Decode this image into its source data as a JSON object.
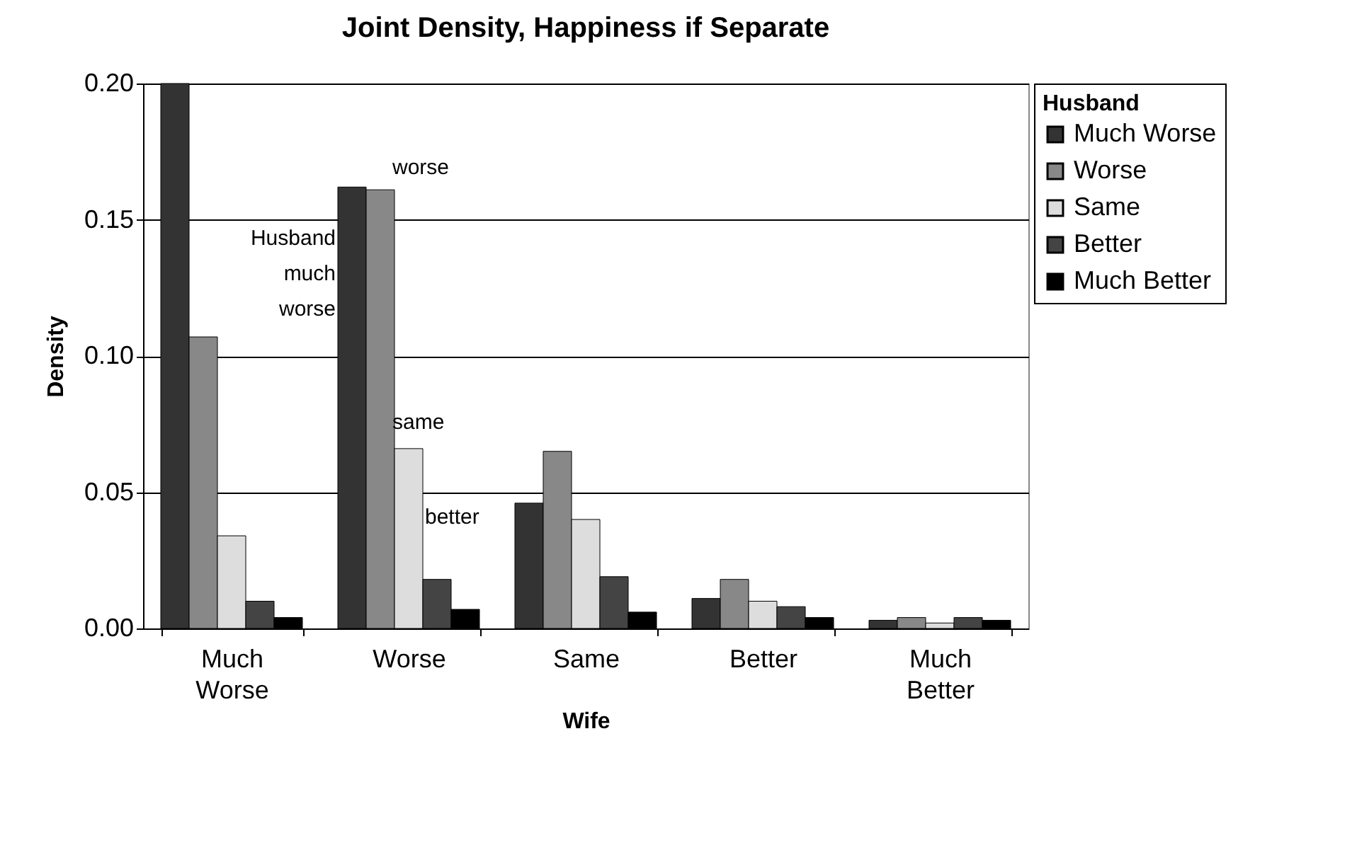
{
  "chart_data": {
    "type": "bar",
    "title": "Joint Density, Happiness if Separate",
    "xlabel": "Wife",
    "ylabel": "Density",
    "legend_title": "Husband",
    "categories": [
      "Much Worse",
      "Worse",
      "Same",
      "Better",
      "Much Better"
    ],
    "series": [
      {
        "name": "Much Worse",
        "color": "#333333",
        "values": [
          0.2,
          0.162,
          0.046,
          0.011,
          0.003
        ]
      },
      {
        "name": "Worse",
        "color": "#888888",
        "values": [
          0.107,
          0.161,
          0.065,
          0.018,
          0.004
        ]
      },
      {
        "name": "Same",
        "color": "#dddddd",
        "values": [
          0.034,
          0.066,
          0.04,
          0.01,
          0.002
        ]
      },
      {
        "name": "Better",
        "color": "#444444",
        "values": [
          0.01,
          0.018,
          0.019,
          0.008,
          0.004
        ]
      },
      {
        "name": "Much Better",
        "color": "#000000",
        "values": [
          0.004,
          0.007,
          0.006,
          0.004,
          0.003
        ]
      }
    ],
    "ylim": [
      0,
      0.2
    ],
    "yticks": [
      {
        "value": 0,
        "label": "0.00"
      },
      {
        "value": 0.05,
        "label": "0.05"
      },
      {
        "value": 0.1,
        "label": "0.10"
      },
      {
        "value": 0.15,
        "label": "0.15"
      },
      {
        "value": 0.2,
        "label": "0.20"
      }
    ],
    "grid": "y",
    "legend": "right",
    "annotations": [
      "worse",
      "Husband much worse",
      "same",
      "better"
    ]
  }
}
